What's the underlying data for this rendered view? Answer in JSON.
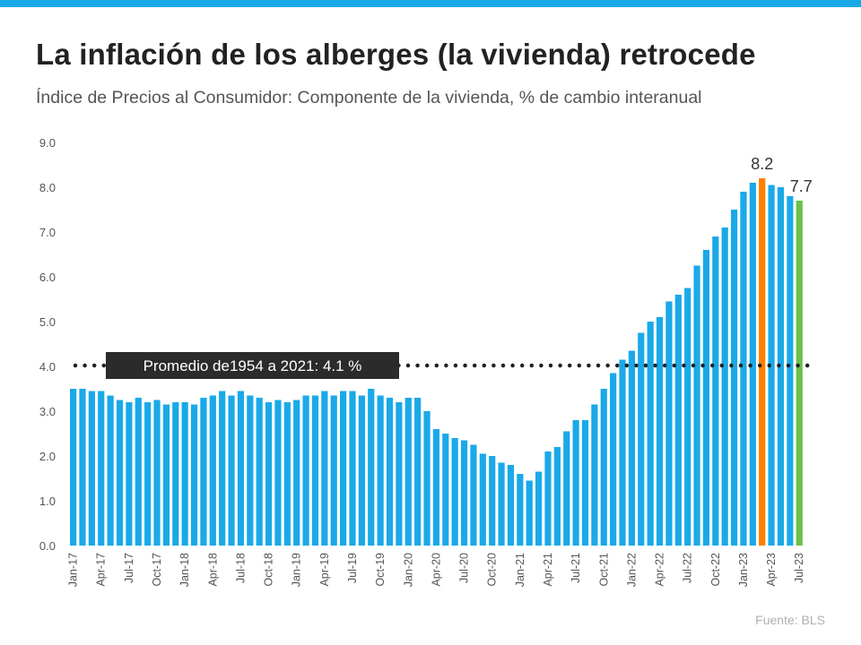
{
  "header": {
    "title": "La inflación de los alberges (la vivienda) retrocede",
    "subtitle": "Índice de Precios al Consumidor: Componente de la vivienda, % de cambio interanual"
  },
  "footer": {
    "source": "Fuente:  BLS"
  },
  "colors": {
    "accent_bar": "#1AA9E8",
    "bar": "#1AA9E8",
    "peak": "#FF7F00",
    "latest": "#6CC04A",
    "avg_line": "#222222",
    "avg_box": "#2B2B2B"
  },
  "chart_data": {
    "type": "bar",
    "ylim": [
      0,
      9
    ],
    "yticks": [
      "0.0",
      "1.0",
      "2.0",
      "3.0",
      "4.0",
      "5.0",
      "6.0",
      "7.0",
      "8.0",
      "9.0"
    ],
    "grid": false,
    "categories": [
      "Jan-17",
      "Feb-17",
      "Mar-17",
      "Apr-17",
      "May-17",
      "Jun-17",
      "Jul-17",
      "Aug-17",
      "Sep-17",
      "Oct-17",
      "Nov-17",
      "Dec-17",
      "Jan-18",
      "Feb-18",
      "Mar-18",
      "Apr-18",
      "May-18",
      "Jun-18",
      "Jul-18",
      "Aug-18",
      "Sep-18",
      "Oct-18",
      "Nov-18",
      "Dec-18",
      "Jan-19",
      "Feb-19",
      "Mar-19",
      "Apr-19",
      "May-19",
      "Jun-19",
      "Jul-19",
      "Aug-19",
      "Sep-19",
      "Oct-19",
      "Nov-19",
      "Dec-19",
      "Jan-20",
      "Feb-20",
      "Mar-20",
      "Apr-20",
      "May-20",
      "Jun-20",
      "Jul-20",
      "Aug-20",
      "Sep-20",
      "Oct-20",
      "Nov-20",
      "Dec-20",
      "Jan-21",
      "Feb-21",
      "Mar-21",
      "Apr-21",
      "May-21",
      "Jun-21",
      "Jul-21",
      "Aug-21",
      "Sep-21",
      "Oct-21",
      "Nov-21",
      "Dec-21",
      "Jan-22",
      "Feb-22",
      "Mar-22",
      "Apr-22",
      "May-22",
      "Jun-22",
      "Jul-22",
      "Aug-22",
      "Sep-22",
      "Oct-22",
      "Nov-22",
      "Dec-22",
      "Jan-23",
      "Feb-23",
      "Mar-23",
      "Apr-23",
      "May-23",
      "Jun-23",
      "Jul-23"
    ],
    "tick_labels": [
      "Jan-17",
      "Apr-17",
      "Jul-17",
      "Oct-17",
      "Jan-18",
      "Apr-18",
      "Jul-18",
      "Oct-18",
      "Jan-19",
      "Apr-19",
      "Jul-19",
      "Oct-19",
      "Jan-20",
      "Apr-20",
      "Jul-20",
      "Oct-20",
      "Jan-21",
      "Apr-21",
      "Jul-21",
      "Oct-21",
      "Jan-22",
      "Apr-22",
      "Jul-22",
      "Oct-22",
      "Jan-23",
      "Apr-23",
      "Jul-23"
    ],
    "values": [
      3.5,
      3.5,
      3.45,
      3.45,
      3.35,
      3.25,
      3.2,
      3.3,
      3.2,
      3.25,
      3.15,
      3.2,
      3.2,
      3.15,
      3.3,
      3.35,
      3.45,
      3.35,
      3.45,
      3.35,
      3.3,
      3.2,
      3.25,
      3.2,
      3.25,
      3.35,
      3.35,
      3.45,
      3.35,
      3.45,
      3.45,
      3.35,
      3.5,
      3.35,
      3.3,
      3.2,
      3.3,
      3.3,
      3.0,
      2.6,
      2.5,
      2.4,
      2.35,
      2.25,
      2.05,
      2.0,
      1.85,
      1.8,
      1.6,
      1.45,
      1.65,
      2.1,
      2.2,
      2.55,
      2.8,
      2.8,
      3.15,
      3.5,
      3.85,
      4.15,
      4.35,
      4.75,
      5.0,
      5.1,
      5.45,
      5.6,
      5.75,
      6.25,
      6.6,
      6.9,
      7.1,
      7.5,
      7.9,
      8.1,
      8.2,
      8.05,
      8.0,
      7.8,
      7.7
    ],
    "highlights": [
      {
        "category": "Mar-23",
        "value": 8.2,
        "label": "8.2",
        "color": "#FF7F00"
      },
      {
        "category": "Jul-23",
        "value": 7.7,
        "label": "7.7",
        "color": "#6CC04A"
      }
    ],
    "reference_line": {
      "value": 4.1,
      "style": "dotted",
      "label": "Promedio de1954 a 2021: 4.1 %"
    }
  }
}
